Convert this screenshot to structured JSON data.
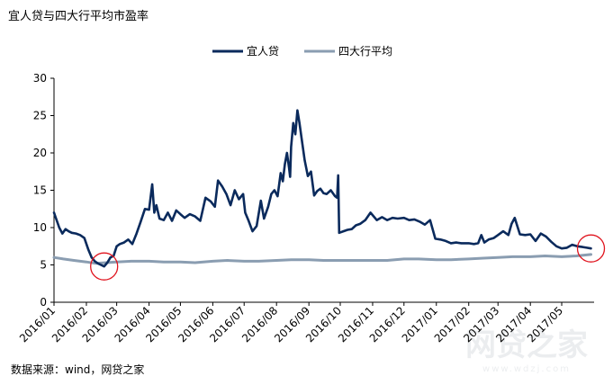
{
  "title": "宜人贷与四大行平均市盈率",
  "source": "数据来源：wind，网贷之家",
  "watermark": {
    "logo_text": "网贷之家",
    "url_text": "www.wdzj.com"
  },
  "colors": {
    "series_1": "#0a2a5c",
    "series_2": "#8a9db1",
    "highlight_circle": "#e0141e"
  },
  "chart_data": {
    "type": "line",
    "title": "宜人贷与四大行平均市盈率",
    "xlabel": "",
    "ylabel": "",
    "ylim": [
      0,
      30
    ],
    "yticks": [
      0,
      5,
      10,
      15,
      20,
      25,
      30
    ],
    "xlim": [
      "2016-01-01",
      "2017-06-01"
    ],
    "xtick_labels": [
      "2016/01",
      "2016/02",
      "2016/03",
      "2016/04",
      "2016/05",
      "2016/06",
      "2016/07",
      "2016/08",
      "2016/09",
      "2016/10",
      "2016/11",
      "2016/12",
      "2017/01",
      "2017/02",
      "2017/03",
      "2017/04",
      "2017/05"
    ],
    "grid": false,
    "legend": "top-center",
    "series": [
      {
        "name": "宜人贷",
        "x": [
          "2016-01-01",
          "2016-01-03",
          "2016-01-06",
          "2016-01-09",
          "2016-01-12",
          "2016-01-15",
          "2016-01-18",
          "2016-01-22",
          "2016-01-26",
          "2016-01-30",
          "2016-02-03",
          "2016-02-06",
          "2016-02-09",
          "2016-02-12",
          "2016-02-15",
          "2016-02-18",
          "2016-02-21",
          "2016-02-24",
          "2016-02-27",
          "2016-03-01",
          "2016-03-04",
          "2016-03-08",
          "2016-03-12",
          "2016-03-16",
          "2016-03-20",
          "2016-03-24",
          "2016-03-28",
          "2016-04-01",
          "2016-04-04",
          "2016-04-06",
          "2016-04-08",
          "2016-04-11",
          "2016-04-15",
          "2016-04-19",
          "2016-04-23",
          "2016-04-27",
          "2016-05-01",
          "2016-05-05",
          "2016-05-10",
          "2016-05-15",
          "2016-05-20",
          "2016-05-25",
          "2016-05-30",
          "2016-06-03",
          "2016-06-06",
          "2016-06-10",
          "2016-06-14",
          "2016-06-18",
          "2016-06-22",
          "2016-06-26",
          "2016-06-30",
          "2016-07-02",
          "2016-07-05",
          "2016-07-09",
          "2016-07-13",
          "2016-07-17",
          "2016-07-20",
          "2016-07-24",
          "2016-07-27",
          "2016-07-30",
          "2016-08-02",
          "2016-08-05",
          "2016-08-07",
          "2016-08-09",
          "2016-08-11",
          "2016-08-13",
          "2016-08-14",
          "2016-08-15",
          "2016-08-17",
          "2016-08-19",
          "2016-08-21",
          "2016-08-23",
          "2016-08-25",
          "2016-08-28",
          "2016-08-31",
          "2016-09-03",
          "2016-09-06",
          "2016-09-09",
          "2016-09-12",
          "2016-09-15",
          "2016-09-18",
          "2016-09-22",
          "2016-09-26",
          "2016-09-28",
          "2016-09-29",
          "2016-09-30",
          "2016-10-04",
          "2016-10-08",
          "2016-10-12",
          "2016-10-16",
          "2016-10-20",
          "2016-10-25",
          "2016-10-30",
          "2016-11-05",
          "2016-11-10",
          "2016-11-15",
          "2016-11-20",
          "2016-11-25",
          "2016-12-01",
          "2016-12-06",
          "2016-12-11",
          "2016-12-16",
          "2016-12-21",
          "2016-12-26",
          "2016-12-31",
          "2017-01-05",
          "2017-01-10",
          "2017-01-15",
          "2017-01-20",
          "2017-01-25",
          "2017-02-01",
          "2017-02-06",
          "2017-02-10",
          "2017-02-13",
          "2017-02-16",
          "2017-02-20",
          "2017-02-25",
          "2017-03-01",
          "2017-03-06",
          "2017-03-11",
          "2017-03-14",
          "2017-03-17",
          "2017-03-22",
          "2017-03-27",
          "2017-04-01",
          "2017-04-06",
          "2017-04-11",
          "2017-04-16",
          "2017-04-21",
          "2017-04-26",
          "2017-05-01",
          "2017-05-06",
          "2017-05-11",
          "2017-05-16",
          "2017-05-21",
          "2017-05-25",
          "2017-05-29"
        ],
        "values": [
          12.0,
          11.2,
          10.0,
          9.2,
          9.8,
          9.5,
          9.3,
          9.2,
          9.0,
          8.6,
          7.0,
          6.0,
          5.5,
          5.2,
          5.0,
          4.8,
          5.3,
          6.0,
          6.2,
          7.5,
          7.8,
          8.0,
          8.4,
          7.8,
          9.2,
          10.8,
          12.5,
          12.4,
          15.8,
          12.0,
          13.0,
          11.2,
          11.0,
          12.0,
          10.9,
          12.3,
          11.8,
          11.3,
          11.8,
          11.5,
          10.9,
          14.0,
          13.5,
          12.8,
          16.3,
          15.5,
          14.5,
          13.0,
          15.0,
          13.8,
          14.5,
          12.0,
          11.0,
          9.5,
          10.2,
          13.6,
          11.2,
          12.8,
          14.5,
          15.0,
          14.2,
          17.3,
          16.2,
          18.5,
          20.0,
          18.0,
          16.8,
          20.8,
          24.0,
          22.5,
          25.7,
          24.0,
          22.0,
          19.0,
          16.9,
          17.5,
          14.3,
          14.9,
          15.2,
          14.6,
          14.5,
          15.0,
          14.2,
          14.0,
          17.0,
          9.3,
          9.5,
          9.7,
          9.8,
          10.3,
          10.5,
          11.0,
          12.0,
          11.0,
          11.4,
          11.0,
          11.3,
          11.2,
          11.3,
          11.0,
          11.1,
          10.8,
          10.4,
          11.0,
          8.5,
          8.4,
          8.2,
          7.9,
          8.0,
          7.9,
          7.9,
          7.8,
          7.9,
          9.0,
          8.0,
          8.4,
          8.6,
          9.0,
          9.5,
          9.0,
          10.5,
          11.3,
          9.1,
          9.0,
          9.1,
          8.2,
          9.2,
          8.8,
          8.1,
          7.5,
          7.2,
          7.3,
          7.7,
          7.5,
          7.4,
          7.3,
          7.2
        ]
      },
      {
        "name": "四大行平均",
        "x": [
          "2016-01-01",
          "2016-01-10",
          "2016-01-20",
          "2016-02-01",
          "2016-02-10",
          "2016-02-20",
          "2016-03-01",
          "2016-03-15",
          "2016-04-01",
          "2016-04-15",
          "2016-05-01",
          "2016-05-15",
          "2016-06-01",
          "2016-06-15",
          "2016-07-01",
          "2016-07-15",
          "2016-08-01",
          "2016-08-15",
          "2016-09-01",
          "2016-09-15",
          "2016-10-01",
          "2016-10-15",
          "2016-11-01",
          "2016-11-15",
          "2016-12-01",
          "2016-12-15",
          "2017-01-01",
          "2017-01-15",
          "2017-02-01",
          "2017-02-15",
          "2017-03-01",
          "2017-03-15",
          "2017-04-01",
          "2017-04-15",
          "2017-05-01",
          "2017-05-15",
          "2017-05-29"
        ],
        "values": [
          6.0,
          5.8,
          5.6,
          5.4,
          5.2,
          5.3,
          5.4,
          5.5,
          5.5,
          5.4,
          5.4,
          5.3,
          5.5,
          5.6,
          5.5,
          5.5,
          5.6,
          5.7,
          5.7,
          5.6,
          5.6,
          5.6,
          5.6,
          5.6,
          5.8,
          5.8,
          5.7,
          5.7,
          5.8,
          5.9,
          6.0,
          6.1,
          6.1,
          6.2,
          6.1,
          6.2,
          6.4
        ]
      }
    ]
  }
}
